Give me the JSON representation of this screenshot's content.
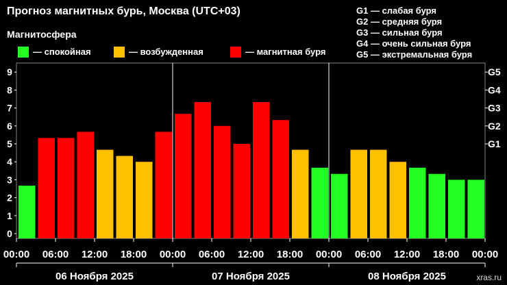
{
  "chart_data": {
    "type": "bar",
    "title": "Прогноз магнитных бурь, Москва (UTC+03)",
    "subtitle": "Магнитосфера",
    "legend": [
      {
        "label": "— спокойная",
        "color": "#22ff22"
      },
      {
        "label": "— возбужденная",
        "color": "#ffc000"
      },
      {
        "label": "— магнитная буря",
        "color": "#ff0000"
      }
    ],
    "g_legend": [
      "G1 — слабая буря",
      "G2 — средняя буря",
      "G3 — сильная буря",
      "G4 — очень сильная буря",
      "G5 — экстремальная буря"
    ],
    "ylim": [
      0,
      9
    ],
    "y_ticks": [
      "0",
      "1",
      "2",
      "3",
      "4",
      "5",
      "6",
      "7",
      "8",
      "9"
    ],
    "g_ticks": [
      {
        "label": "G1",
        "value": 5
      },
      {
        "label": "G2",
        "value": 6
      },
      {
        "label": "G3",
        "value": 7
      },
      {
        "label": "G4",
        "value": 8
      },
      {
        "label": "G5",
        "value": 9
      }
    ],
    "x_tick_labels": [
      "00:00",
      "06:00",
      "12:00",
      "18:00",
      "00:00",
      "06:00",
      "12:00",
      "18:00",
      "00:00",
      "06:00",
      "12:00",
      "18:00",
      "00:00"
    ],
    "days": [
      "06 Ноября 2025",
      "07 Ноября 2025",
      "08 Ноября 2025"
    ],
    "thresholds": {
      "unsettled": 4,
      "storm": 5
    },
    "values": [
      2.67,
      5.33,
      5.33,
      5.67,
      4.67,
      4.33,
      4.0,
      5.67,
      6.67,
      7.33,
      6.0,
      5.0,
      7.33,
      6.33,
      4.67,
      3.67,
      3.33,
      4.67,
      4.67,
      4.0,
      3.67,
      3.33,
      3.0,
      3.0
    ],
    "watermark": "xras.ru"
  }
}
